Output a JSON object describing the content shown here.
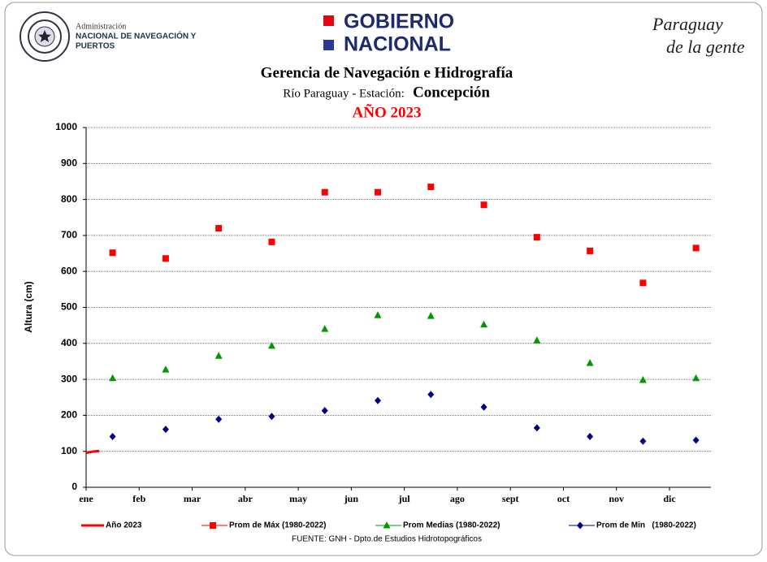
{
  "header": {
    "admin_line1": "Administración",
    "admin_line2": "NACIONAL DE NAVEGACIÓN Y",
    "admin_line3": "PUERTOS",
    "gob_line1": "GOBIERNO",
    "gob_line2": "NACIONAL",
    "slogan_line1": "Paraguay",
    "slogan_line2": "de la gente"
  },
  "chart_data": {
    "type": "scatter",
    "title": "Gerencia de Navegación e Hidrografía",
    "subtitle_prefix": "Río Paraguay - Estación:",
    "subtitle_station": "Concepción",
    "year_title": "AÑO 2023",
    "y_label": "Altura (cm)",
    "source": "FUENTE:  GNH  - Dpto.de Estudios Hidrotopográficos",
    "categories": [
      "ene",
      "feb",
      "mar",
      "abr",
      "may",
      "jun",
      "jul",
      "ago",
      "sept",
      "oct",
      "nov",
      "dic"
    ],
    "ylim": [
      0,
      1000
    ],
    "yticks": [
      0,
      100,
      200,
      300,
      400,
      500,
      600,
      700,
      800,
      900,
      1000
    ],
    "grid": true,
    "series": [
      {
        "name": "Año 2023",
        "color": "#ff0000",
        "marker": "line",
        "values": [
          96,
          98,
          100,
          101
        ]
      },
      {
        "name": "Prom de Máx (1980-2022)",
        "color": "#ff0000",
        "marker": "square",
        "values": [
          652,
          636,
          720,
          682,
          820,
          820,
          835,
          785,
          695,
          657,
          568,
          665
        ]
      },
      {
        "name": "Prom Medias (1980-2022)",
        "color": "#009900",
        "marker": "triangle",
        "values": [
          303,
          327,
          365,
          393,
          440,
          478,
          476,
          452,
          408,
          345,
          298,
          303
        ]
      },
      {
        "name": "Prom de Min   (1980-2022)",
        "color": "#000080",
        "marker": "diamond",
        "values": [
          141,
          161,
          189,
          197,
          213,
          241,
          258,
          223,
          165,
          141,
          128,
          131
        ]
      }
    ]
  }
}
